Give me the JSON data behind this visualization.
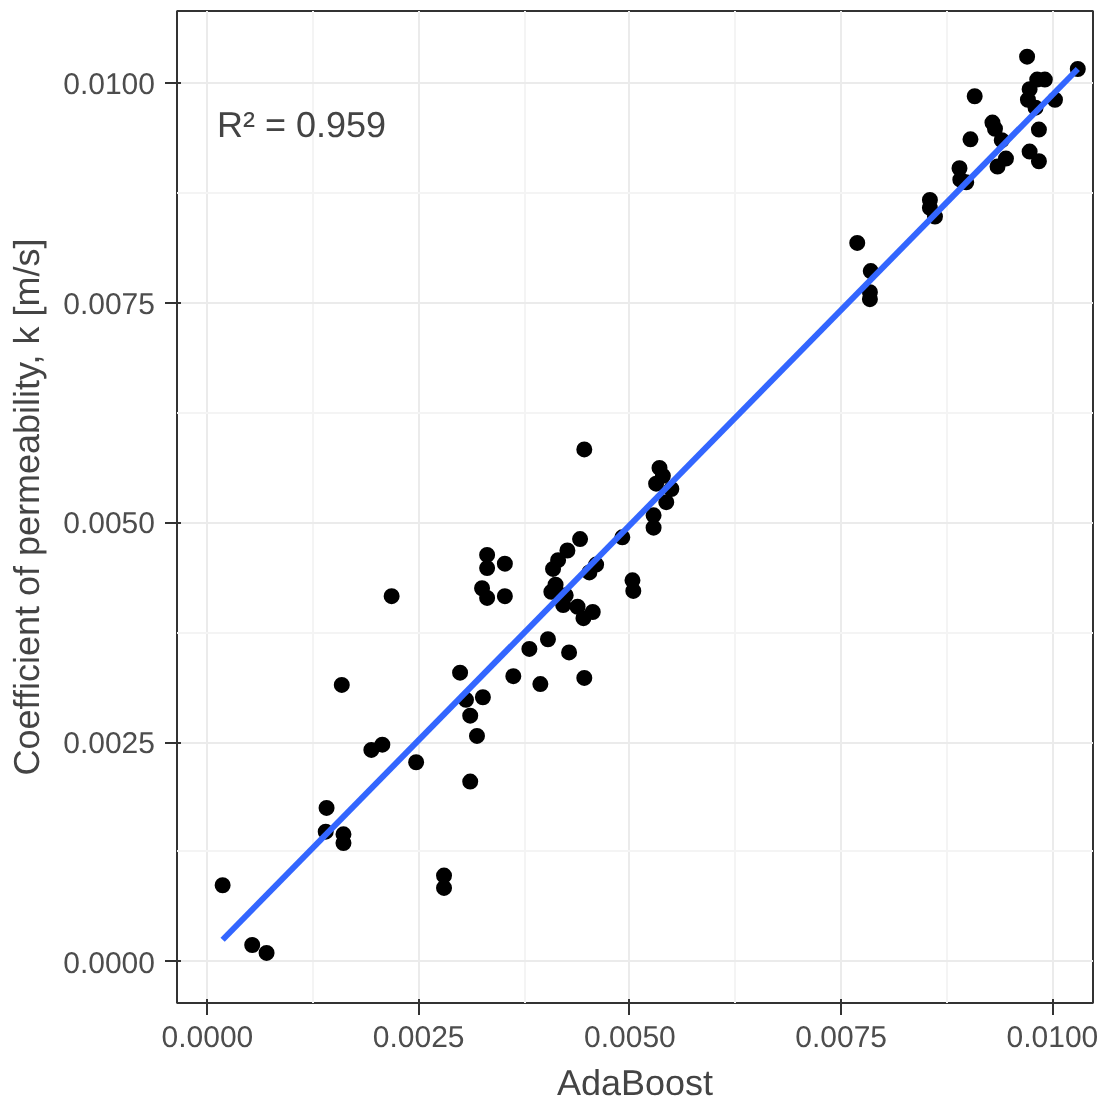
{
  "chart_data": {
    "type": "scatter",
    "xlabel": "AdaBoost",
    "ylabel": "Coefficient of permeability, k [m/s]",
    "annotations": [
      "R² = 0.959"
    ],
    "xlim": [
      -0.00036,
      0.01048
    ],
    "ylim": [
      -0.00047,
      0.01082
    ],
    "xticks": [
      {
        "value": 0,
        "label": "0.0000"
      },
      {
        "value": 0.0025,
        "label": "0.0025"
      },
      {
        "value": 0.005,
        "label": "0.0050"
      },
      {
        "value": 0.0075,
        "label": "0.0075"
      },
      {
        "value": 0.01,
        "label": "0.0100"
      }
    ],
    "yticks": [
      {
        "value": 0,
        "label": "0.0000"
      },
      {
        "value": 0.0025,
        "label": "0.0025"
      },
      {
        "value": 0.005,
        "label": "0.0050"
      },
      {
        "value": 0.0075,
        "label": "0.0075"
      },
      {
        "value": 0.01,
        "label": "0.0100"
      }
    ],
    "grid": true,
    "series": [
      {
        "color": "#000000",
        "marker": "circle",
        "x": [
          0.00018,
          0.00053,
          0.0007,
          0.00159,
          0.00141,
          0.0014,
          0.00161,
          0.00161,
          0.00194,
          0.00207,
          0.00247,
          0.0028,
          0.0028,
          0.00311,
          0.00319,
          0.00311,
          0.00306,
          0.00326,
          0.00299,
          0.00362,
          0.00381,
          0.00403,
          0.00394,
          0.00428,
          0.00446,
          0.00218,
          0.00446,
          0.00331,
          0.00331,
          0.00352,
          0.00325,
          0.00331,
          0.00352,
          0.00441,
          0.00426,
          0.00415,
          0.00409,
          0.0046,
          0.00452,
          0.00412,
          0.00407,
          0.00424,
          0.00421,
          0.00438,
          0.00456,
          0.00445,
          0.00491,
          0.00503,
          0.00504,
          0.00528,
          0.00528,
          0.00535,
          0.00539,
          0.00531,
          0.00549,
          0.00543,
          0.00769,
          0.00785,
          0.00784,
          0.00784,
          0.00855,
          0.00855,
          0.00861,
          0.0089,
          0.00891,
          0.00898,
          0.00903,
          0.00908,
          0.00929,
          0.00932,
          0.0094,
          0.00935,
          0.00945,
          0.0097,
          0.00973,
          0.00982,
          0.00991,
          0.00971,
          0.0098,
          0.01003,
          0.00984,
          0.00973,
          0.00984,
          0.0103
        ],
        "values": [
          0.00087,
          0.00019,
          0.0001,
          0.00315,
          0.00175,
          0.00148,
          0.00145,
          0.00135,
          0.00241,
          0.00247,
          0.00227,
          0.00098,
          0.00084,
          0.00205,
          0.00257,
          0.0028,
          0.00298,
          0.00301,
          0.00329,
          0.00325,
          0.00356,
          0.00367,
          0.00316,
          0.00352,
          0.00323,
          0.00416,
          0.00583,
          0.00463,
          0.00448,
          0.00453,
          0.00425,
          0.00414,
          0.00416,
          0.00481,
          0.00468,
          0.00457,
          0.00447,
          0.00452,
          0.00443,
          0.00429,
          0.00421,
          0.00417,
          0.00406,
          0.00404,
          0.00398,
          0.00391,
          0.00483,
          0.00434,
          0.00422,
          0.00508,
          0.00494,
          0.00562,
          0.00553,
          0.00544,
          0.00538,
          0.00523,
          0.00818,
          0.00786,
          0.00762,
          0.00754,
          0.00867,
          0.00858,
          0.00848,
          0.00903,
          0.0089,
          0.00887,
          0.00936,
          0.00985,
          0.00955,
          0.00948,
          0.00935,
          0.00905,
          0.00914,
          0.0103,
          0.00993,
          0.01004,
          0.01004,
          0.00981,
          0.00972,
          0.00981,
          0.00947,
          0.00922,
          0.00911,
          0.01016
        ]
      },
      {
        "type": "line",
        "color": "#3366ff",
        "x": [
          0.00018,
          0.0103
        ],
        "values": [
          0.00025,
          0.01016
        ]
      }
    ]
  }
}
